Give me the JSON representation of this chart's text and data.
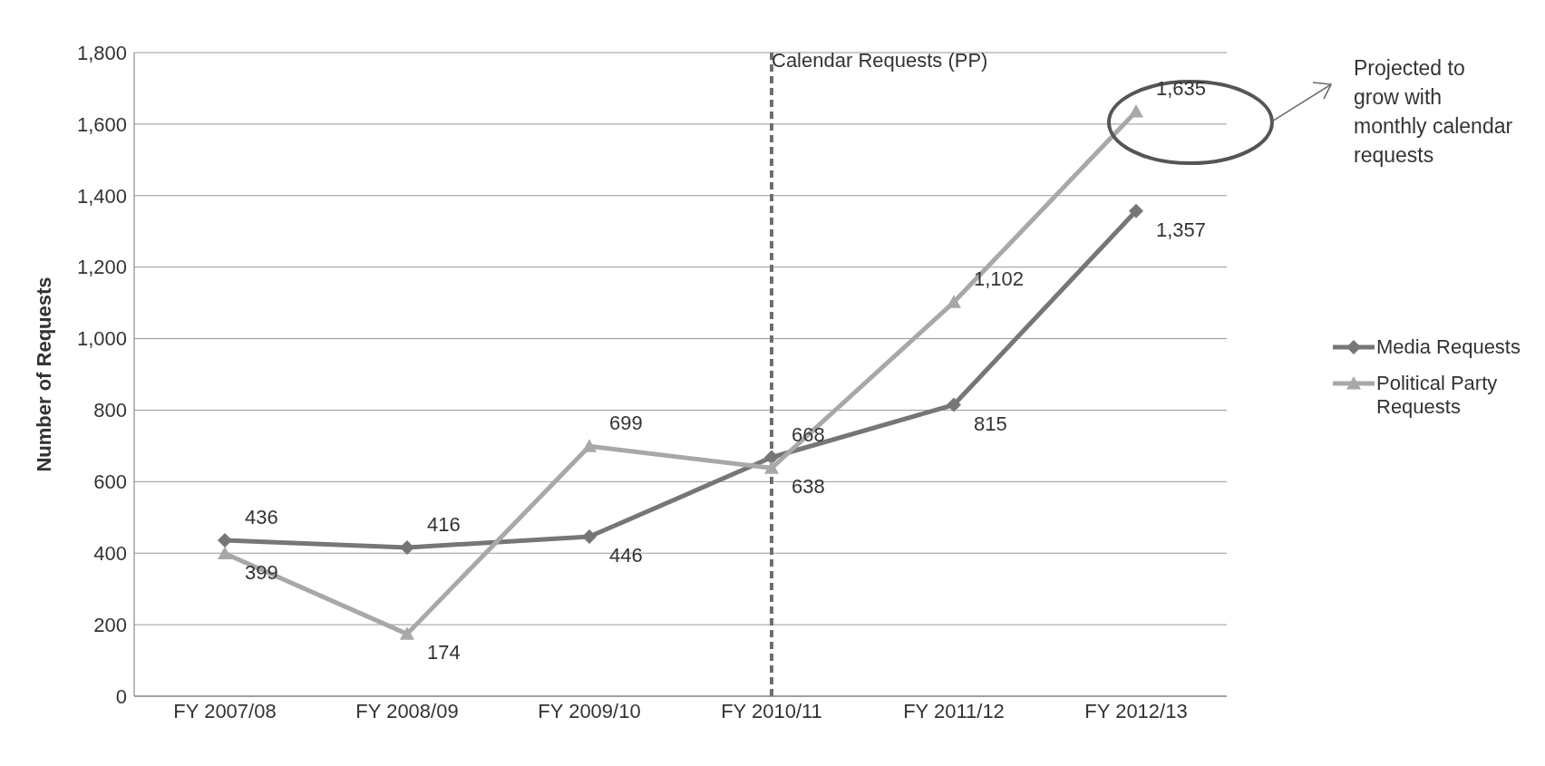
{
  "chart_data": {
    "type": "line",
    "ylabel": "Number of Requests",
    "categories": [
      "FY 2007/08",
      "FY 2008/09",
      "FY 2009/10",
      "FY 2010/11",
      "FY 2011/12",
      "FY 2012/13"
    ],
    "series": [
      {
        "name": "Media Requests",
        "color": "#767676",
        "marker": "diamond",
        "values": [
          436,
          416,
          446,
          668,
          815,
          1357
        ],
        "value_labels": [
          "436",
          "416",
          "446",
          "668",
          "815",
          "1,357"
        ]
      },
      {
        "name": "Political Party Requests",
        "color": "#a8a8a8",
        "marker": "triangle",
        "values": [
          399,
          174,
          699,
          638,
          1102,
          1635
        ],
        "value_labels": [
          "399",
          "174",
          "699",
          "638",
          "1,102",
          "1,635"
        ]
      }
    ],
    "ylim": [
      0,
      1800
    ],
    "yticks": [
      0,
      200,
      400,
      600,
      800,
      {
        "value": 1000,
        "label": "1,000"
      },
      {
        "value": 1200,
        "label": "1,200"
      },
      {
        "value": 1400,
        "label": "1,400"
      },
      {
        "value": 1600,
        "label": "1,600"
      },
      {
        "value": 1800,
        "label": "1,800"
      }
    ],
    "grid": "y",
    "legend": "right",
    "ref_lines": [
      {
        "axis": "x",
        "value": "FY 2010/11",
        "label": "Calendar Requests (PP)",
        "color": "#6e6e6e",
        "line_style": "dashed"
      }
    ],
    "annotations": [
      "Projected to grow with monthly calendar requests"
    ]
  }
}
